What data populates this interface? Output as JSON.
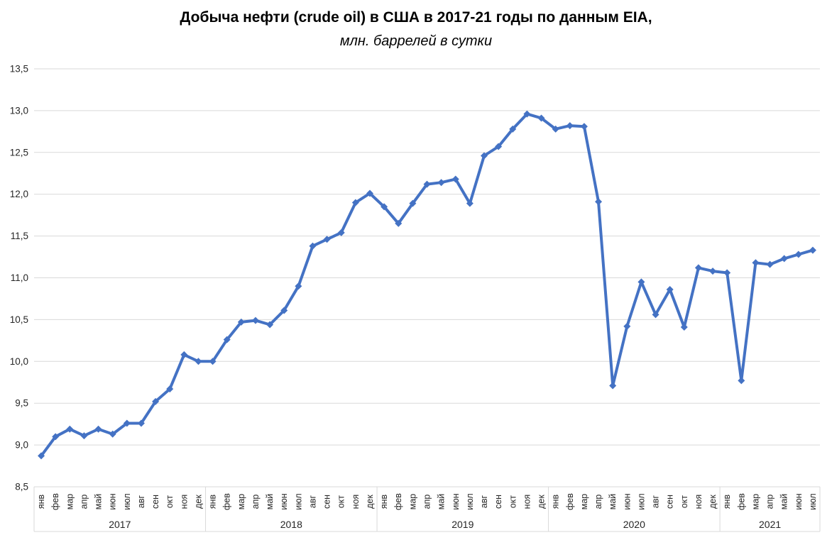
{
  "header": {
    "title": "Добыча нефти (crude oil) в США в 2017-21 годы по данным EIA,",
    "subtitle": "млн. баррелей в сутки"
  },
  "colors": {
    "line": "#4472C4",
    "grid": "#D9D9D9",
    "axis_text": "#262626",
    "background": "#FFFFFF"
  },
  "chart_data": {
    "type": "line",
    "title": "Добыча нефти (crude oil) в США в 2017-21 годы по данным EIA,",
    "subtitle": "млн. баррелей в сутки",
    "xlabel": "",
    "ylabel": "",
    "ylim": [
      8.5,
      13.5
    ],
    "grid": true,
    "legend": "none",
    "line_color": "#4472C4",
    "marker": "diamond",
    "yticks": {
      "values": [
        13.5,
        13.0,
        12.5,
        12.0,
        11.5,
        11.0,
        10.5,
        10.0,
        9.5,
        9.0,
        8.5
      ],
      "labels": [
        "13,5",
        "13,0",
        "12,5",
        "12,0",
        "11,5",
        "11,0",
        "10,5",
        "10,0",
        "9,5",
        "9,0",
        "8,5"
      ]
    },
    "groups": [
      {
        "year": "2017",
        "months": [
          "янв",
          "фев",
          "мар",
          "апр",
          "май",
          "июн",
          "июл",
          "авг",
          "сен",
          "окт",
          "ноя",
          "дек"
        ],
        "values": [
          8.87,
          9.1,
          9.19,
          9.11,
          9.19,
          9.13,
          9.26,
          9.26,
          9.52,
          9.67,
          10.08,
          10.0
        ]
      },
      {
        "year": "2018",
        "months": [
          "янв",
          "фев",
          "мар",
          "апр",
          "май",
          "июн",
          "июл",
          "авг",
          "сен",
          "окт",
          "ноя",
          "дек"
        ],
        "values": [
          10.0,
          10.26,
          10.47,
          10.49,
          10.44,
          10.61,
          10.9,
          11.38,
          11.46,
          11.54,
          11.9,
          12.01
        ]
      },
      {
        "year": "2019",
        "months": [
          "янв",
          "фев",
          "мар",
          "апр",
          "май",
          "июн",
          "июл",
          "авг",
          "сен",
          "окт",
          "ноя",
          "дек"
        ],
        "values": [
          11.85,
          11.65,
          11.89,
          12.12,
          12.14,
          12.18,
          11.89,
          12.46,
          12.57,
          12.78,
          12.96,
          12.91
        ]
      },
      {
        "year": "2020",
        "months": [
          "янв",
          "фев",
          "мар",
          "апр",
          "май",
          "июн",
          "июл",
          "авг",
          "сен",
          "окт",
          "ноя",
          "дек"
        ],
        "values": [
          12.78,
          12.82,
          12.81,
          11.91,
          9.71,
          10.42,
          10.95,
          10.56,
          10.86,
          10.41,
          11.12,
          11.08
        ]
      },
      {
        "year": "2021",
        "months": [
          "янв",
          "фев",
          "мар",
          "апр",
          "май",
          "июн",
          "июл"
        ],
        "values": [
          11.06,
          9.77,
          11.18,
          11.16,
          11.23,
          11.28,
          11.33
        ]
      }
    ]
  }
}
